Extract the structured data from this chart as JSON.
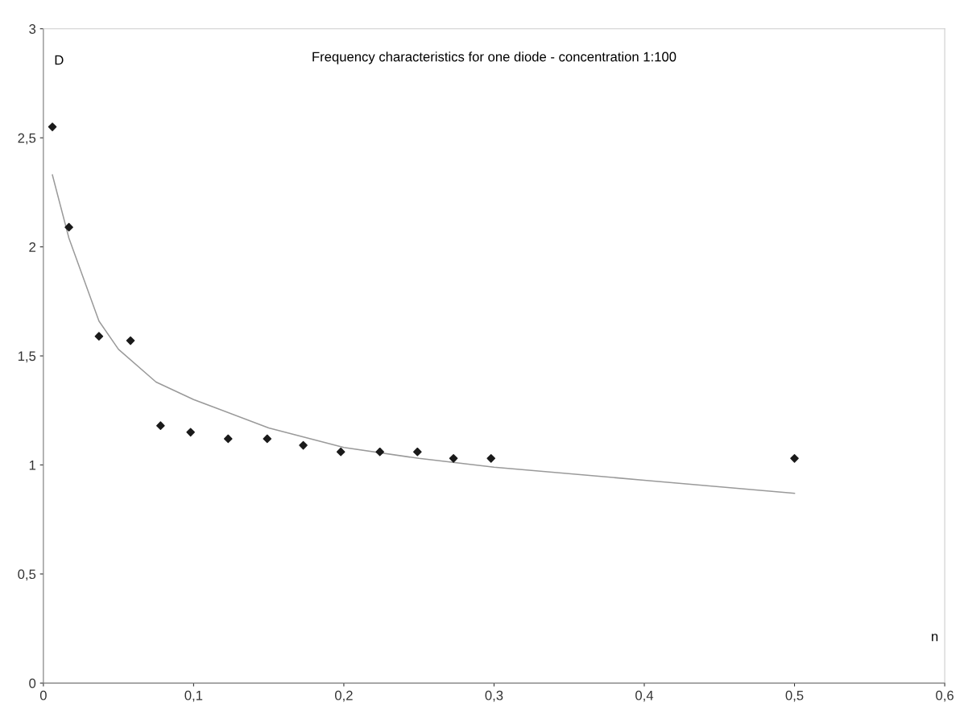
{
  "chart_data": {
    "type": "scatter",
    "title": "Frequency characteristics for one diode - concentration 1:100",
    "xlabel": "n",
    "ylabel": "D",
    "series": [
      {
        "color": "#1a1a1a",
        "marker": "diamond",
        "x": [
          0.006,
          0.017,
          0.037,
          0.058,
          0.078,
          0.098,
          0.123,
          0.149,
          0.173,
          0.198,
          0.224,
          0.249,
          0.273,
          0.298,
          0.5
        ],
        "values": [
          2.55,
          2.09,
          1.59,
          1.57,
          1.18,
          1.15,
          1.12,
          1.12,
          1.09,
          1.06,
          1.06,
          1.06,
          1.03,
          1.03,
          1.03
        ]
      },
      {
        "type": "line",
        "color": "#9a9a9a",
        "marker": "none",
        "line_style": "solid",
        "x": [
          0.006,
          0.017,
          0.037,
          0.05,
          0.075,
          0.1,
          0.15,
          0.2,
          0.25,
          0.3,
          0.4,
          0.5
        ],
        "values": [
          2.33,
          2.04,
          1.66,
          1.53,
          1.38,
          1.3,
          1.17,
          1.08,
          1.03,
          0.99,
          0.93,
          0.87
        ]
      }
    ],
    "xlim": [
      0,
      0.6
    ],
    "ylim": [
      0,
      3
    ],
    "xticks": [
      0,
      {
        "value": 0.1,
        "label": "0,1"
      },
      {
        "value": 0.2,
        "label": "0,2"
      },
      {
        "value": 0.3,
        "label": "0,3"
      },
      {
        "value": 0.4,
        "label": "0,4"
      },
      {
        "value": 0.5,
        "label": "0,5"
      },
      {
        "value": 0.6,
        "label": "0,6"
      }
    ],
    "yticks": [
      0,
      {
        "value": 0.5,
        "label": "0,5"
      },
      1,
      {
        "value": 1.5,
        "label": "1,5"
      },
      2,
      {
        "value": 2.5,
        "label": "2,5"
      },
      3
    ],
    "grid": false,
    "legend": false
  }
}
